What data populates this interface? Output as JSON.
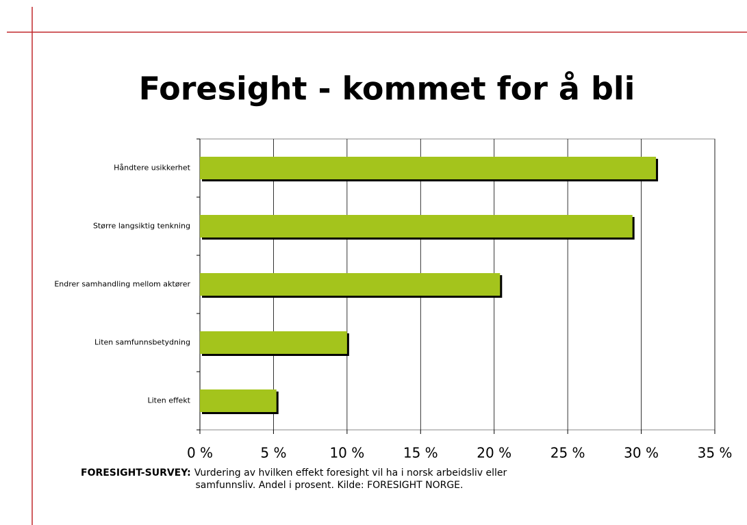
{
  "chart_data": {
    "type": "bar",
    "orientation": "horizontal",
    "title": "Foresight - kommet for å bli",
    "categories": [
      "Håndtere usikkerhet",
      "Større langsiktig tenkning",
      "Endrer samhandling mellom aktører",
      "Liten samfunnsbetydning",
      "Liten effekt"
    ],
    "values": [
      31,
      29.4,
      20.4,
      10,
      5.2
    ],
    "color": "#a4c41c",
    "xlim": [
      0,
      35
    ],
    "xticks": [
      {
        "value": 0,
        "label": "0 %"
      },
      {
        "value": 5,
        "label": "5 %"
      },
      {
        "value": 10,
        "label": "10 %"
      },
      {
        "value": 15,
        "label": "15 %"
      },
      {
        "value": 20,
        "label": "20 %"
      },
      {
        "value": 25,
        "label": "25 %"
      },
      {
        "value": 30,
        "label": "30 %"
      },
      {
        "value": 35,
        "label": "35 %"
      }
    ],
    "grid": true,
    "caption": {
      "label": "FORESIGHT-SURVEY:",
      "lines": [
        "Vurdering av hvilken effekt foresight vil ha i norsk arbeidsliv eller",
        "samfunnsliv. Andel i prosent. Kilde: FORESIGHT NORGE."
      ]
    }
  }
}
